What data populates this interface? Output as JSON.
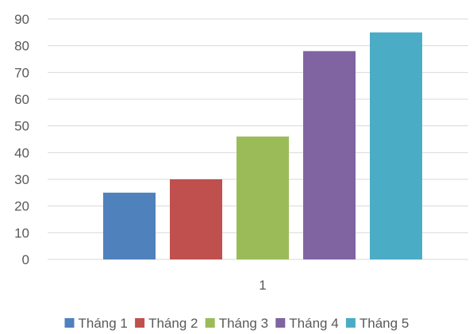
{
  "chart_data": {
    "type": "bar",
    "categories": [
      "1"
    ],
    "series": [
      {
        "name": "Tháng 1",
        "values": [
          25
        ],
        "color": "#4F81BD"
      },
      {
        "name": "Tháng 2",
        "values": [
          30
        ],
        "color": "#C0504D"
      },
      {
        "name": "Tháng 3",
        "values": [
          46
        ],
        "color": "#9BBB59"
      },
      {
        "name": "Tháng 4",
        "values": [
          78
        ],
        "color": "#8064A2"
      },
      {
        "name": "Tháng 5",
        "values": [
          85
        ],
        "color": "#4BACC6"
      }
    ],
    "ylim": [
      0,
      90
    ],
    "yticks": [
      0,
      10,
      20,
      30,
      40,
      50,
      60,
      70,
      80,
      90
    ],
    "grid": true,
    "legend_position": "bottom"
  }
}
